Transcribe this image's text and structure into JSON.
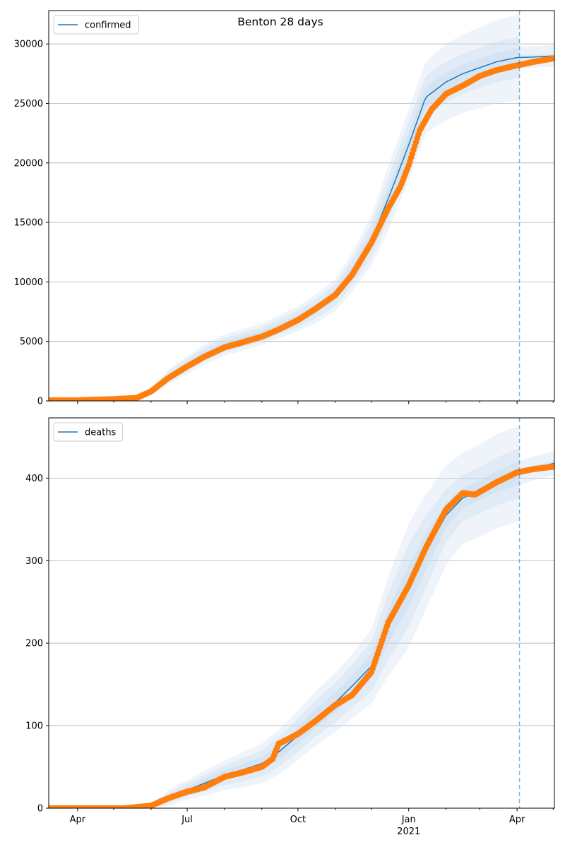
{
  "figure": {
    "title": "Benton 28 days"
  },
  "colors": {
    "model": "#1f77b4",
    "observed": "#ff7f0e",
    "band": "#c6dbef",
    "grid": "#b0b0b0"
  },
  "x_axis": {
    "ticks": [
      {
        "date": "2020-04-01",
        "label": "Apr",
        "sublabel": ""
      },
      {
        "date": "2020-07-01",
        "label": "Jul",
        "sublabel": ""
      },
      {
        "date": "2020-10-01",
        "label": "Oct",
        "sublabel": ""
      },
      {
        "date": "2021-01-01",
        "label": "Jan",
        "sublabel": "2021"
      },
      {
        "date": "2021-04-01",
        "label": "Apr",
        "sublabel": ""
      }
    ],
    "minor_ticks": [
      "2020-05-01",
      "2020-06-01",
      "2020-08-01",
      "2020-09-01",
      "2020-11-01",
      "2020-12-01",
      "2021-02-01",
      "2021-03-01",
      "2021-05-01"
    ]
  },
  "chart_data": [
    {
      "type": "line",
      "legend": "confirmed",
      "legend_position": "top-left",
      "grid": "y",
      "xlim": [
        "2020-03-08",
        "2021-05-02"
      ],
      "ylim": [
        0,
        32800
      ],
      "yticks": [
        0,
        5000,
        10000,
        15000,
        20000,
        25000,
        30000
      ],
      "forecast_date": "2021-04-03",
      "model": {
        "x": [
          "2020-03-08",
          "2020-05-01",
          "2020-05-20",
          "2020-06-01",
          "2020-06-15",
          "2020-07-01",
          "2020-07-15",
          "2020-08-01",
          "2020-08-15",
          "2020-09-01",
          "2020-09-15",
          "2020-10-01",
          "2020-10-15",
          "2020-11-01",
          "2020-11-15",
          "2020-12-01",
          "2020-12-15",
          "2021-01-01",
          "2021-01-15",
          "2021-02-01",
          "2021-02-15",
          "2021-03-01",
          "2021-03-15",
          "2021-04-01",
          "2021-04-15",
          "2021-05-02"
        ],
        "y": [
          0,
          100,
          250,
          800,
          2000,
          3000,
          3900,
          4700,
          5100,
          5600,
          6200,
          6900,
          7700,
          8900,
          10800,
          13500,
          17000,
          21500,
          25500,
          26800,
          27500,
          28000,
          28500,
          28850,
          28900,
          29000
        ],
        "band_half_widths": [
          [
            0,
            20,
            50,
            100,
            200,
            250,
            280,
            300,
            300,
            300,
            320,
            350,
            400,
            450,
            550,
            700,
            900,
            1000,
            900,
            800,
            800,
            750,
            750,
            800,
            800,
            800
          ],
          [
            0,
            40,
            100,
            200,
            400,
            500,
            560,
            600,
            600,
            600,
            640,
            700,
            800,
            900,
            1100,
            1400,
            1800,
            2000,
            1800,
            1700,
            1700,
            1700,
            1700,
            1700,
            1700,
            1700
          ],
          [
            0,
            60,
            150,
            300,
            600,
            750,
            840,
            900,
            900,
            900,
            960,
            1050,
            1200,
            1350,
            1650,
            2100,
            2700,
            3000,
            3000,
            3200,
            3300,
            3400,
            3500,
            3600,
            3600,
            3600
          ]
        ]
      },
      "observed": {
        "x": [
          "2020-03-08",
          "2020-04-01",
          "2020-05-01",
          "2020-05-20",
          "2020-06-01",
          "2020-06-15",
          "2020-07-01",
          "2020-07-15",
          "2020-08-01",
          "2020-08-15",
          "2020-09-01",
          "2020-09-15",
          "2020-10-01",
          "2020-10-15",
          "2020-11-01",
          "2020-11-15",
          "2020-12-01",
          "2020-12-15",
          "2020-12-25",
          "2021-01-01",
          "2021-01-10",
          "2021-01-20",
          "2021-02-01",
          "2021-02-15",
          "2021-03-01",
          "2021-03-15",
          "2021-04-01",
          "2021-04-15",
          "2021-05-02"
        ],
        "y": [
          50,
          60,
          150,
          250,
          800,
          1900,
          2900,
          3700,
          4500,
          4900,
          5400,
          6000,
          6800,
          7700,
          8900,
          10600,
          13300,
          16200,
          18000,
          19800,
          22700,
          24500,
          25800,
          26500,
          27300,
          27800,
          28200,
          28500,
          28800
        ]
      }
    },
    {
      "type": "line",
      "legend": "deaths",
      "legend_position": "top-left",
      "grid": "y",
      "xlim": [
        "2020-03-08",
        "2021-05-02"
      ],
      "ylim": [
        0,
        473
      ],
      "yticks": [
        0,
        100,
        200,
        300,
        400
      ],
      "forecast_date": "2021-04-03",
      "model": {
        "x": [
          "2020-03-08",
          "2020-05-10",
          "2020-06-01",
          "2020-06-15",
          "2020-07-01",
          "2020-07-15",
          "2020-08-01",
          "2020-08-15",
          "2020-09-01",
          "2020-09-15",
          "2020-10-01",
          "2020-10-15",
          "2020-11-01",
          "2020-11-15",
          "2020-12-01",
          "2020-12-15",
          "2021-01-01",
          "2021-01-15",
          "2021-02-01",
          "2021-02-15",
          "2021-03-01",
          "2021-03-15",
          "2021-04-01",
          "2021-04-15",
          "2021-05-02"
        ],
        "y": [
          0,
          0,
          3,
          12,
          22,
          30,
          40,
          46,
          54,
          68,
          88,
          108,
          128,
          148,
          172,
          220,
          270,
          310,
          355,
          376,
          385,
          396,
          405,
          412,
          418
        ],
        "band_half_widths": [
          [
            0,
            0,
            1,
            3,
            4,
            5,
            6,
            7,
            8,
            9,
            10,
            11,
            12,
            13,
            15,
            20,
            25,
            22,
            15,
            12,
            12,
            13,
            14,
            14,
            14
          ],
          [
            0,
            0,
            2,
            6,
            8,
            10,
            12,
            14,
            16,
            18,
            20,
            22,
            24,
            26,
            30,
            40,
            50,
            44,
            32,
            28,
            28,
            29,
            30,
            30,
            30
          ],
          [
            0,
            0,
            3,
            9,
            12,
            15,
            18,
            21,
            24,
            27,
            30,
            33,
            36,
            39,
            45,
            60,
            75,
            70,
            60,
            55,
            56,
            57,
            58,
            58,
            58
          ]
        ]
      },
      "observed": {
        "x": [
          "2020-03-08",
          "2020-05-10",
          "2020-06-01",
          "2020-06-15",
          "2020-07-01",
          "2020-07-15",
          "2020-08-01",
          "2020-08-15",
          "2020-09-01",
          "2020-09-10",
          "2020-09-15",
          "2020-10-01",
          "2020-10-15",
          "2020-11-01",
          "2020-11-15",
          "2020-12-01",
          "2020-12-15",
          "2021-01-01",
          "2021-01-15",
          "2021-02-01",
          "2021-02-15",
          "2021-02-25",
          "2021-03-15",
          "2021-04-01",
          "2021-04-15",
          "2021-05-02"
        ],
        "y": [
          0,
          0,
          3,
          12,
          20,
          25,
          38,
          43,
          50,
          60,
          78,
          90,
          105,
          125,
          137,
          165,
          225,
          270,
          315,
          362,
          382,
          380,
          395,
          407,
          411,
          414
        ]
      }
    }
  ]
}
